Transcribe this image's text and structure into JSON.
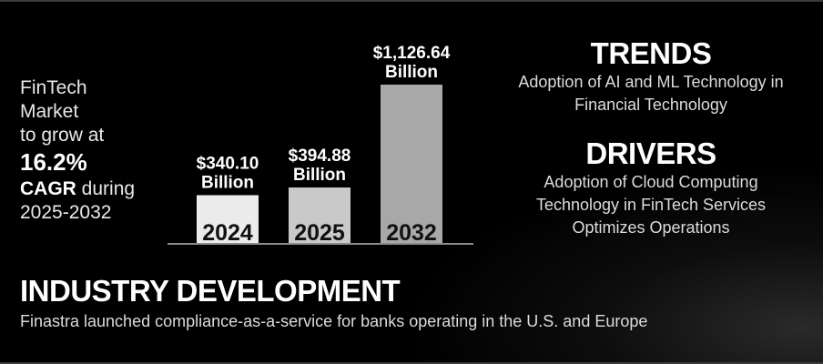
{
  "left": {
    "line1": "FinTech",
    "line2": "Market",
    "line3": "to grow at",
    "rate": "16.2%",
    "cagr_word": "CAGR",
    "during": " during",
    "period": "2025-2032"
  },
  "chart_data": {
    "type": "bar",
    "categories": [
      "2024",
      "2025",
      "2032"
    ],
    "values": [
      340.1,
      394.88,
      1126.64
    ],
    "value_labels": [
      "$340.10",
      "$394.88",
      "$1,126.64"
    ],
    "unit_label": "Billion",
    "bar_colors": [
      "#ebebeb",
      "#c9c9c9",
      "#a8a8a8"
    ]
  },
  "trends": {
    "heading": "TRENDS",
    "text_line1": "Adoption of AI and ML Technology in",
    "text_line2": "Financial Technology"
  },
  "drivers": {
    "heading": "DRIVERS",
    "text_line1": "Adoption of Cloud Computing",
    "text_line2": "Technology in FinTech Services",
    "text_line3": "Optimizes Operations"
  },
  "industry": {
    "heading": "INDUSTRY DEVELOPMENT",
    "text": "Finastra launched compliance-as-a-service for banks operating in the U.S. and Europe"
  }
}
